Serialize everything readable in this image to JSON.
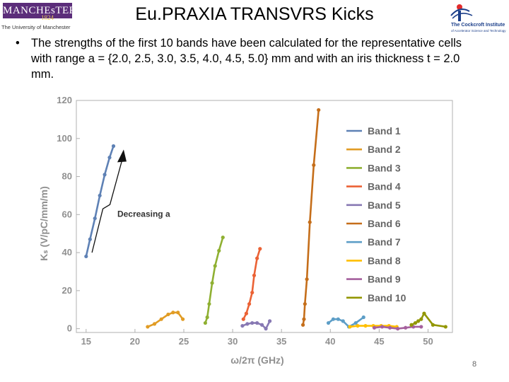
{
  "header": {
    "title": "Eu.PRAXIA TRANSVRS Kicks",
    "logo_left_word": "MANCHEsTER",
    "logo_left_year": "1824",
    "logo_left_sub": "The University of Manchester",
    "logo_right_name": "The Cockcroft Institute",
    "logo_right_tag": "of Accelerator Science and Technology"
  },
  "bullet": {
    "marker": "•",
    "text": "The strengths of the first 10 bands have been calculated for the representative cells with range a = {2.0, 2.5, 3.0, 3.5, 4.0, 4.5, 5.0} mm and with an iris thickness t = 2.0 mm."
  },
  "page_number": "8",
  "colors": {
    "band1": "#5e81b5",
    "band2": "#e19c24",
    "band3": "#8fb032",
    "band4": "#eb6235",
    "band5": "#8778b3",
    "band6": "#c56e1a",
    "band7": "#5d9ec7",
    "band8": "#ffbf00",
    "band9": "#a5609d",
    "band10": "#929600",
    "axis": "#b0b0b0",
    "tick_label": "#909090"
  },
  "chart_data": {
    "type": "line",
    "xlabel": "ω/2π (GHz)",
    "ylabel": "Kₛ (V/pC/mm/m)",
    "xlim": [
      14,
      52.5
    ],
    "ylim": [
      -2,
      120
    ],
    "x_ticks": [
      15,
      20,
      25,
      30,
      35,
      40,
      45,
      50
    ],
    "y_ticks": [
      0,
      20,
      40,
      60,
      80,
      100,
      120
    ],
    "grid": false,
    "legend_position": "right",
    "annotation": {
      "text": "Decreasing a",
      "arrow_from": [
        15.6,
        40
      ],
      "arrow_to": [
        18.7,
        89
      ]
    },
    "series": [
      {
        "name": "Band 1",
        "x": [
          15.0,
          15.4,
          15.9,
          16.4,
          16.9,
          17.4,
          17.8
        ],
        "y": [
          38,
          47,
          58,
          70,
          81,
          90,
          96
        ]
      },
      {
        "name": "Band 2",
        "x": [
          21.3,
          22.0,
          22.7,
          23.4,
          23.9,
          24.4,
          24.9
        ],
        "y": [
          1,
          2.5,
          5,
          7.5,
          8.5,
          8.5,
          5
        ]
      },
      {
        "name": "Band 3",
        "x": [
          27.2,
          27.4,
          27.6,
          27.9,
          28.2,
          28.6,
          29.0
        ],
        "y": [
          3,
          6,
          13,
          24,
          33,
          41,
          48
        ]
      },
      {
        "name": "Band 4",
        "x": [
          31.1,
          31.4,
          31.7,
          32.0,
          32.2,
          32.5,
          32.8
        ],
        "y": [
          5,
          8,
          13,
          19,
          28,
          37,
          42
        ]
      },
      {
        "name": "Band 5",
        "x": [
          31.0,
          31.5,
          32.0,
          32.5,
          33.0,
          33.4,
          33.8
        ],
        "y": [
          1.5,
          2.5,
          3,
          3,
          2,
          0,
          4
        ]
      },
      {
        "name": "Band 6",
        "x": [
          37.2,
          37.3,
          37.4,
          37.6,
          37.9,
          38.3,
          38.8
        ],
        "y": [
          2,
          5,
          13,
          26,
          56,
          86,
          115
        ]
      },
      {
        "name": "Band 7",
        "x": [
          39.8,
          40.3,
          40.8,
          41.3,
          41.9,
          42.6,
          43.4
        ],
        "y": [
          3,
          5,
          5,
          4,
          1,
          3,
          6
        ]
      },
      {
        "name": "Band 8",
        "x": [
          42.0,
          42.8,
          43.6,
          44.4,
          45.2,
          46.0,
          46.8
        ],
        "y": [
          1,
          1.5,
          1.5,
          1.5,
          1.5,
          1.5,
          1
        ]
      },
      {
        "name": "Band 9",
        "x": [
          44.5,
          45.3,
          46.1,
          46.9,
          47.7,
          48.5,
          49.3
        ],
        "y": [
          0.5,
          1,
          0.5,
          0,
          0.5,
          1,
          1
        ]
      },
      {
        "name": "Band 10",
        "x": [
          48.3,
          48.7,
          49.0,
          49.3,
          49.6,
          50.5,
          51.8
        ],
        "y": [
          2,
          3,
          4,
          5,
          8,
          2,
          1
        ]
      }
    ]
  }
}
